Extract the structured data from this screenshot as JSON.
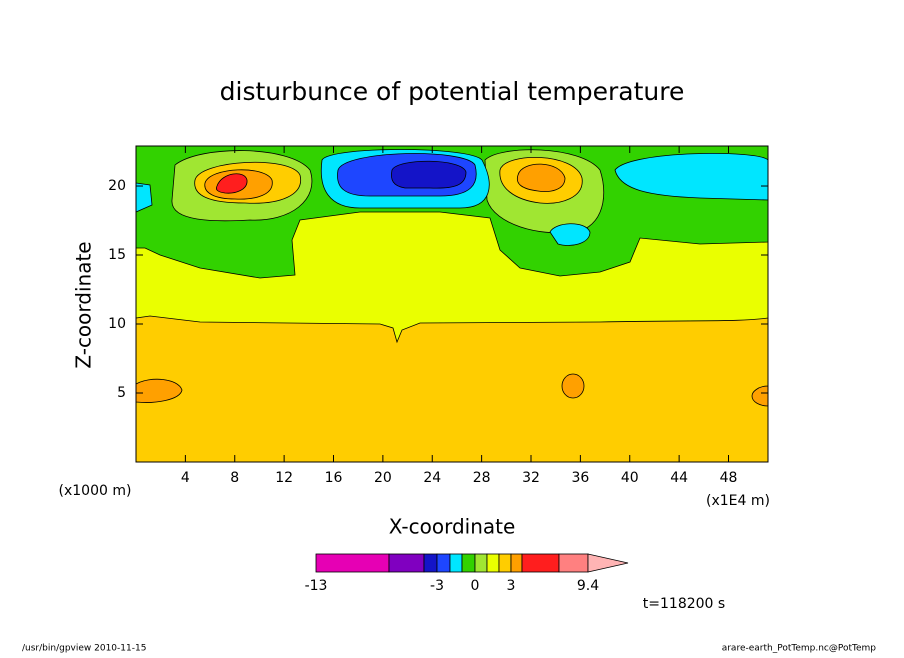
{
  "chart_data": {
    "type": "contour",
    "title": "disturbunce of potential temperature",
    "xlabel": "X-coordinate",
    "xlabel_units": "(x1E4 m)",
    "ylabel": "Z-coordinate",
    "ylabel_units": "(x1000 m)",
    "xlim": [
      0,
      51.2
    ],
    "xticks": [
      4,
      8,
      12,
      16,
      20,
      24,
      28,
      32,
      36,
      40,
      44,
      48
    ],
    "ylim": [
      0,
      22.9
    ],
    "yticks": [
      5,
      10,
      15,
      20
    ],
    "levels": [
      -13,
      -8,
      -4,
      -3,
      -2,
      -1,
      0,
      1,
      2,
      3,
      4,
      6,
      9.4
    ],
    "level_colors": [
      "#e600b4",
      "#8000c0",
      "#1414c8",
      "#1e46ff",
      "#00e6ff",
      "#32d200",
      "#a0e632",
      "#eaff00",
      "#ffcd00",
      "#ffa000",
      "#ff1e1e",
      "#ff8080"
    ],
    "extend_color": "#ffb4b4",
    "colorbar_ticks": [
      -13,
      -3,
      0,
      3,
      9.4
    ],
    "time_label": "t=118200 s",
    "footer_left": "/usr/bin/gpview  2010-11-15",
    "footer_right": "arare-earth_PotTemp.nc@PotTemp"
  }
}
